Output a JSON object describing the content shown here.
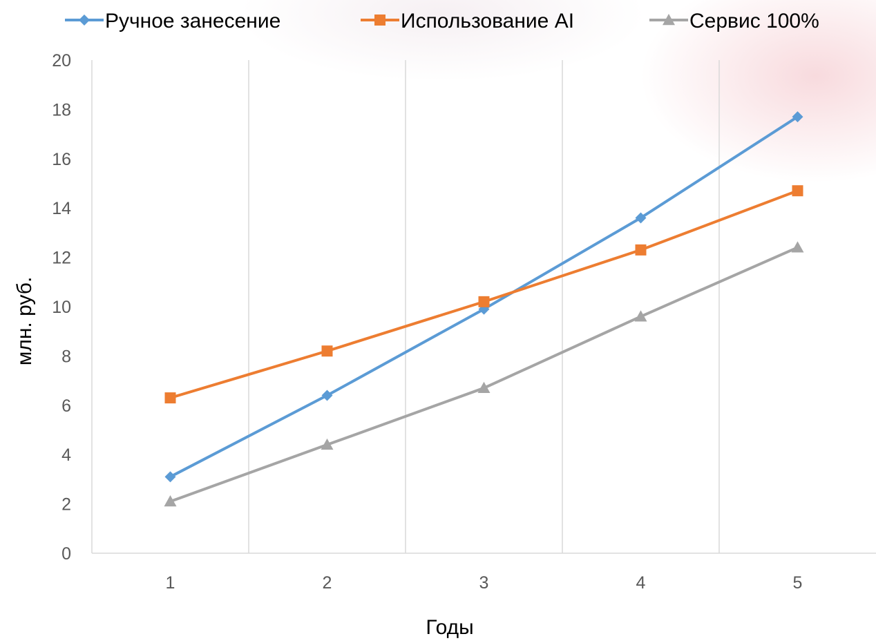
{
  "chart_data": {
    "type": "line",
    "title": "",
    "xlabel": "Годы",
    "ylabel": "млн. руб.",
    "x": [
      1,
      2,
      3,
      4,
      5
    ],
    "x_tick_labels": [
      "1",
      "2",
      "3",
      "4",
      "5"
    ],
    "ylim": [
      0,
      20
    ],
    "y_ticks": [
      0,
      2,
      4,
      6,
      8,
      10,
      12,
      14,
      16,
      18,
      20
    ],
    "y_tick_labels": [
      "0",
      "2",
      "4",
      "6",
      "8",
      "10",
      "12",
      "14",
      "16",
      "18",
      "20"
    ],
    "grid": "vertical",
    "legend_position": "top",
    "series": [
      {
        "name": "Ручное занесение",
        "values": [
          3.1,
          6.4,
          9.9,
          13.6,
          17.7
        ],
        "color": "#5B9BD5",
        "marker": "diamond"
      },
      {
        "name": "Использование AI",
        "values": [
          6.3,
          8.2,
          10.2,
          12.3,
          14.7
        ],
        "color": "#ED7D31",
        "marker": "square"
      },
      {
        "name": "Сервис 100%",
        "values": [
          2.1,
          4.4,
          6.7,
          9.6,
          12.4
        ],
        "color": "#A5A5A5",
        "marker": "triangle"
      }
    ]
  }
}
